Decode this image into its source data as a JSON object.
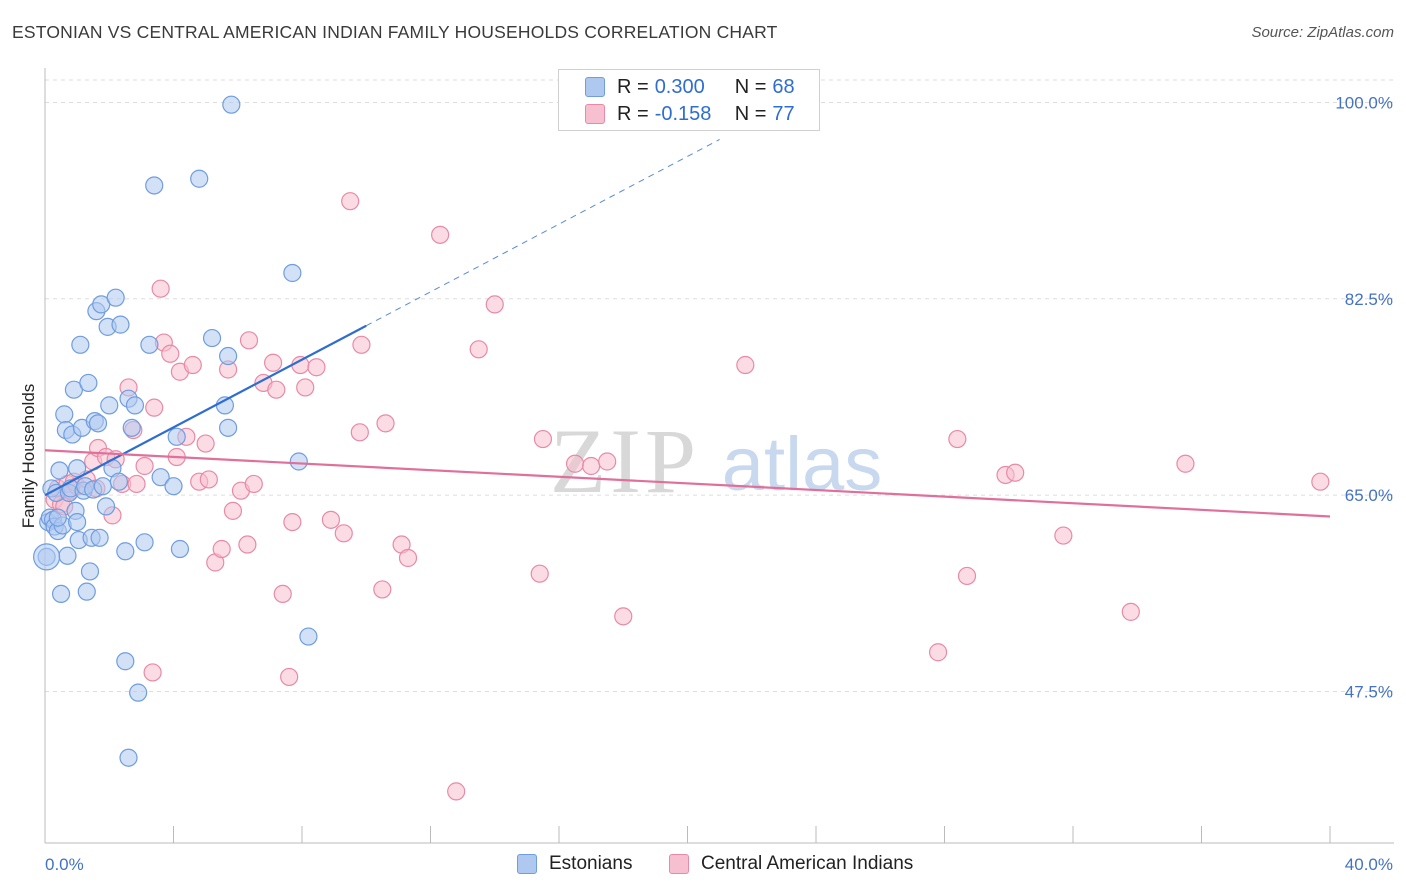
{
  "title": "ESTONIAN VS CENTRAL AMERICAN INDIAN FAMILY HOUSEHOLDS CORRELATION CHART",
  "source": "Source: ZipAtlas.com",
  "watermark": {
    "zip": "ZIP",
    "atlas": "atlas"
  },
  "colors": {
    "blue_fill": "#aec8f0",
    "blue_stroke": "#6f9ddf",
    "blue_line": "#2f6dd0",
    "pink_fill": "#f7c0d0",
    "pink_stroke": "#e88aa6",
    "pink_line": "#e0709a",
    "grid": "#dddddd",
    "tick_text": "#4472c4"
  },
  "legend": {
    "rows": [
      {
        "series": "Estonians",
        "r_label": "R =",
        "r_value": "0.300",
        "n_label": "N =",
        "n_value": "68"
      },
      {
        "series": "Central American Indians",
        "r_label": "R =",
        "r_value": "-0.158",
        "n_label": "N =",
        "n_value": "77"
      }
    ]
  },
  "chart_data": {
    "type": "scatter",
    "title": "ESTONIAN VS CENTRAL AMERICAN INDIAN FAMILY HOUSEHOLDS CORRELATION CHART",
    "xlabel": "",
    "ylabel": "Family Households",
    "xlim": [
      0,
      40
    ],
    "ylim": [
      34,
      102
    ],
    "x_tick_labels": [
      "0.0%",
      "40.0%"
    ],
    "y_ticks": [
      47.5,
      65.0,
      82.5,
      100.0
    ],
    "y_tick_labels": [
      "47.5%",
      "65.0%",
      "82.5%",
      "100.0%"
    ],
    "series": [
      {
        "name": "Estonians",
        "trend": {
          "x0": 0.0,
          "y0": 65.0,
          "x1": 10.0,
          "y1": 80.1,
          "dash_to_x": 21.0,
          "dash_to_y": 96.7
        },
        "points": [
          [
            0.05,
            59.5
          ],
          [
            0.1,
            62.6
          ],
          [
            0.15,
            63.0
          ],
          [
            0.2,
            65.6
          ],
          [
            0.25,
            62.8
          ],
          [
            0.3,
            62.2
          ],
          [
            0.35,
            65.2
          ],
          [
            0.4,
            61.8
          ],
          [
            0.45,
            67.2
          ],
          [
            0.5,
            56.2
          ],
          [
            0.55,
            62.3
          ],
          [
            0.6,
            72.2
          ],
          [
            0.65,
            70.8
          ],
          [
            0.7,
            59.6
          ],
          [
            0.75,
            65.2
          ],
          [
            0.8,
            65.6
          ],
          [
            0.85,
            70.4
          ],
          [
            0.9,
            74.4
          ],
          [
            0.95,
            63.6
          ],
          [
            1.0,
            67.4
          ],
          [
            1.05,
            61.0
          ],
          [
            1.1,
            78.4
          ],
          [
            1.15,
            71.0
          ],
          [
            1.2,
            65.4
          ],
          [
            1.25,
            65.8
          ],
          [
            1.3,
            56.4
          ],
          [
            1.35,
            75.0
          ],
          [
            1.4,
            58.2
          ],
          [
            1.45,
            61.2
          ],
          [
            1.5,
            65.5
          ],
          [
            1.55,
            71.6
          ],
          [
            1.6,
            81.4
          ],
          [
            1.65,
            71.4
          ],
          [
            1.7,
            61.2
          ],
          [
            1.75,
            82.0
          ],
          [
            1.8,
            65.8
          ],
          [
            1.9,
            64.0
          ],
          [
            1.95,
            80.0
          ],
          [
            2.0,
            73.0
          ],
          [
            2.1,
            67.4
          ],
          [
            2.2,
            82.6
          ],
          [
            2.3,
            66.2
          ],
          [
            2.35,
            80.2
          ],
          [
            2.5,
            60.0
          ],
          [
            2.5,
            50.2
          ],
          [
            2.6,
            73.6
          ],
          [
            2.6,
            41.6
          ],
          [
            2.7,
            71.0
          ],
          [
            2.8,
            73.0
          ],
          [
            2.9,
            47.4
          ],
          [
            3.1,
            60.8
          ],
          [
            3.25,
            78.4
          ],
          [
            3.4,
            92.6
          ],
          [
            3.6,
            66.6
          ],
          [
            4.0,
            65.8
          ],
          [
            4.1,
            70.2
          ],
          [
            4.2,
            60.2
          ],
          [
            4.8,
            93.2
          ],
          [
            5.2,
            79.0
          ],
          [
            5.6,
            73.0
          ],
          [
            5.7,
            71.0
          ],
          [
            5.7,
            77.4
          ],
          [
            5.8,
            99.8
          ],
          [
            7.7,
            84.8
          ],
          [
            7.9,
            68.0
          ],
          [
            8.2,
            52.4
          ],
          [
            1.0,
            62.6
          ],
          [
            0.4,
            63.0
          ]
        ]
      },
      {
        "name": "Central American Indians",
        "trend": {
          "x0": 0.0,
          "y0": 69.0,
          "x1": 40.0,
          "y1": 63.1
        },
        "points": [
          [
            0.3,
            64.6
          ],
          [
            0.4,
            65.6
          ],
          [
            0.5,
            64.2
          ],
          [
            0.6,
            64.0
          ],
          [
            0.7,
            66.0
          ],
          [
            0.8,
            65.4
          ],
          [
            0.9,
            66.2
          ],
          [
            1.0,
            65.8
          ],
          [
            1.3,
            66.4
          ],
          [
            1.5,
            68.0
          ],
          [
            1.6,
            65.6
          ],
          [
            1.65,
            69.2
          ],
          [
            1.9,
            68.4
          ],
          [
            2.1,
            63.2
          ],
          [
            2.2,
            68.2
          ],
          [
            2.4,
            66.0
          ],
          [
            2.6,
            74.6
          ],
          [
            2.75,
            70.8
          ],
          [
            2.85,
            66.0
          ],
          [
            3.1,
            67.6
          ],
          [
            3.35,
            49.2
          ],
          [
            3.4,
            72.8
          ],
          [
            3.6,
            83.4
          ],
          [
            3.7,
            78.6
          ],
          [
            3.9,
            77.6
          ],
          [
            4.1,
            68.4
          ],
          [
            4.2,
            76.0
          ],
          [
            4.4,
            70.2
          ],
          [
            4.6,
            76.6
          ],
          [
            4.8,
            66.2
          ],
          [
            5.0,
            69.6
          ],
          [
            5.1,
            66.4
          ],
          [
            5.3,
            59.0
          ],
          [
            5.5,
            60.2
          ],
          [
            5.7,
            76.2
          ],
          [
            5.85,
            63.6
          ],
          [
            6.1,
            65.4
          ],
          [
            6.3,
            60.6
          ],
          [
            6.35,
            78.8
          ],
          [
            6.5,
            66.0
          ],
          [
            6.8,
            75.0
          ],
          [
            7.1,
            76.8
          ],
          [
            7.2,
            74.4
          ],
          [
            7.4,
            56.2
          ],
          [
            7.6,
            48.8
          ],
          [
            7.7,
            62.6
          ],
          [
            7.95,
            76.6
          ],
          [
            8.1,
            74.6
          ],
          [
            8.45,
            76.4
          ],
          [
            8.9,
            62.8
          ],
          [
            9.3,
            61.6
          ],
          [
            9.5,
            91.2
          ],
          [
            9.8,
            70.6
          ],
          [
            9.85,
            78.4
          ],
          [
            10.5,
            56.6
          ],
          [
            10.6,
            71.4
          ],
          [
            11.1,
            60.6
          ],
          [
            11.3,
            59.4
          ],
          [
            12.3,
            88.2
          ],
          [
            12.8,
            38.6
          ],
          [
            13.5,
            78.0
          ],
          [
            14.0,
            82.0
          ],
          [
            15.4,
            58.0
          ],
          [
            15.5,
            70.0
          ],
          [
            16.5,
            67.8
          ],
          [
            17.0,
            67.6
          ],
          [
            17.5,
            68.0
          ],
          [
            18.0,
            54.2
          ],
          [
            21.8,
            76.6
          ],
          [
            27.8,
            51.0
          ],
          [
            28.4,
            70.0
          ],
          [
            28.7,
            57.8
          ],
          [
            29.9,
            66.8
          ],
          [
            30.2,
            67.0
          ],
          [
            31.7,
            61.4
          ],
          [
            33.8,
            54.6
          ],
          [
            35.5,
            67.8
          ],
          [
            39.7,
            66.2
          ]
        ]
      }
    ]
  }
}
